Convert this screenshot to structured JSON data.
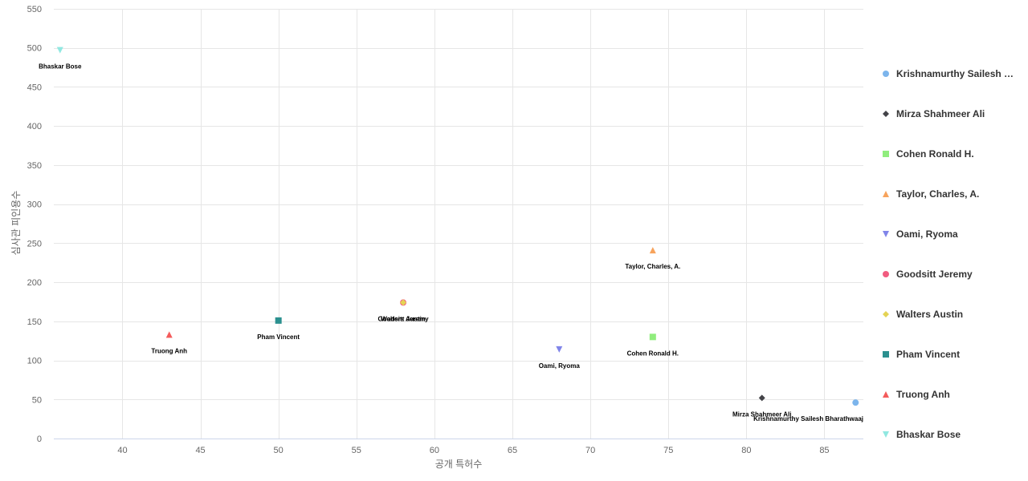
{
  "chart_data": {
    "type": "scatter",
    "xlabel": "공개 특허수",
    "ylabel": "심사관 피인용수",
    "xlim": [
      35.6,
      87.5
    ],
    "ylim": [
      0,
      550
    ],
    "x_ticks": [
      40,
      45,
      50,
      55,
      60,
      65,
      70,
      75,
      80,
      85
    ],
    "y_ticks": [
      0,
      50,
      100,
      150,
      200,
      250,
      300,
      350,
      400,
      450,
      500,
      550
    ],
    "grid": true,
    "legend_position": "right",
    "series": [
      {
        "name": "Krishnamurthy Sailesh Bharathwaaj",
        "legend_label": "Krishnamurthy Sailesh …",
        "point_label": "Krishnamurthy Sailesh Bharathwaaj",
        "x": 87,
        "y": 46,
        "color": "#7cb5ec",
        "marker": "circle"
      },
      {
        "name": "Mirza Shahmeer Ali",
        "legend_label": "Mirza Shahmeer Ali",
        "point_label": "Mirza Shahmeer Ali",
        "x": 81,
        "y": 52,
        "color": "#434348",
        "marker": "diamond"
      },
      {
        "name": "Cohen Ronald H.",
        "legend_label": "Cohen Ronald H.",
        "point_label": "Cohen Ronald H.",
        "x": 74,
        "y": 130,
        "color": "#90ed7d",
        "marker": "square"
      },
      {
        "name": "Taylor, Charles, A.",
        "legend_label": "Taylor, Charles, A.",
        "point_label": "Taylor, Charles, A.",
        "x": 74,
        "y": 241,
        "color": "#f7a35c",
        "marker": "triangle"
      },
      {
        "name": "Oami, Ryoma",
        "legend_label": "Oami, Ryoma",
        "point_label": "Oami, Ryoma",
        "x": 68,
        "y": 114,
        "color": "#8085e9",
        "marker": "triangle-down"
      },
      {
        "name": "Goodsitt Jeremy",
        "legend_label": "Goodsitt Jeremy",
        "point_label": "Goodsitt Jeremy",
        "x": 58,
        "y": 174,
        "color": "#f15c80",
        "marker": "circle"
      },
      {
        "name": "Walters Austin",
        "legend_label": "Walters Austin",
        "point_label": "Walters Austin",
        "x": 58,
        "y": 174,
        "color": "#e4d354",
        "marker": "diamond"
      },
      {
        "name": "Pham Vincent",
        "legend_label": "Pham Vincent",
        "point_label": "Pham Vincent",
        "x": 50,
        "y": 151,
        "color": "#2b908f",
        "marker": "square"
      },
      {
        "name": "Truong Anh",
        "legend_label": "Truong Anh",
        "point_label": "Truong Anh",
        "x": 43,
        "y": 133,
        "color": "#f45b5b",
        "marker": "triangle"
      },
      {
        "name": "Bhaskar Bose",
        "legend_label": "Bhaskar Bose",
        "point_label": "Bhaskar Bose",
        "x": 36,
        "y": 497,
        "color": "#91e8e1",
        "marker": "triangle-down"
      }
    ]
  }
}
